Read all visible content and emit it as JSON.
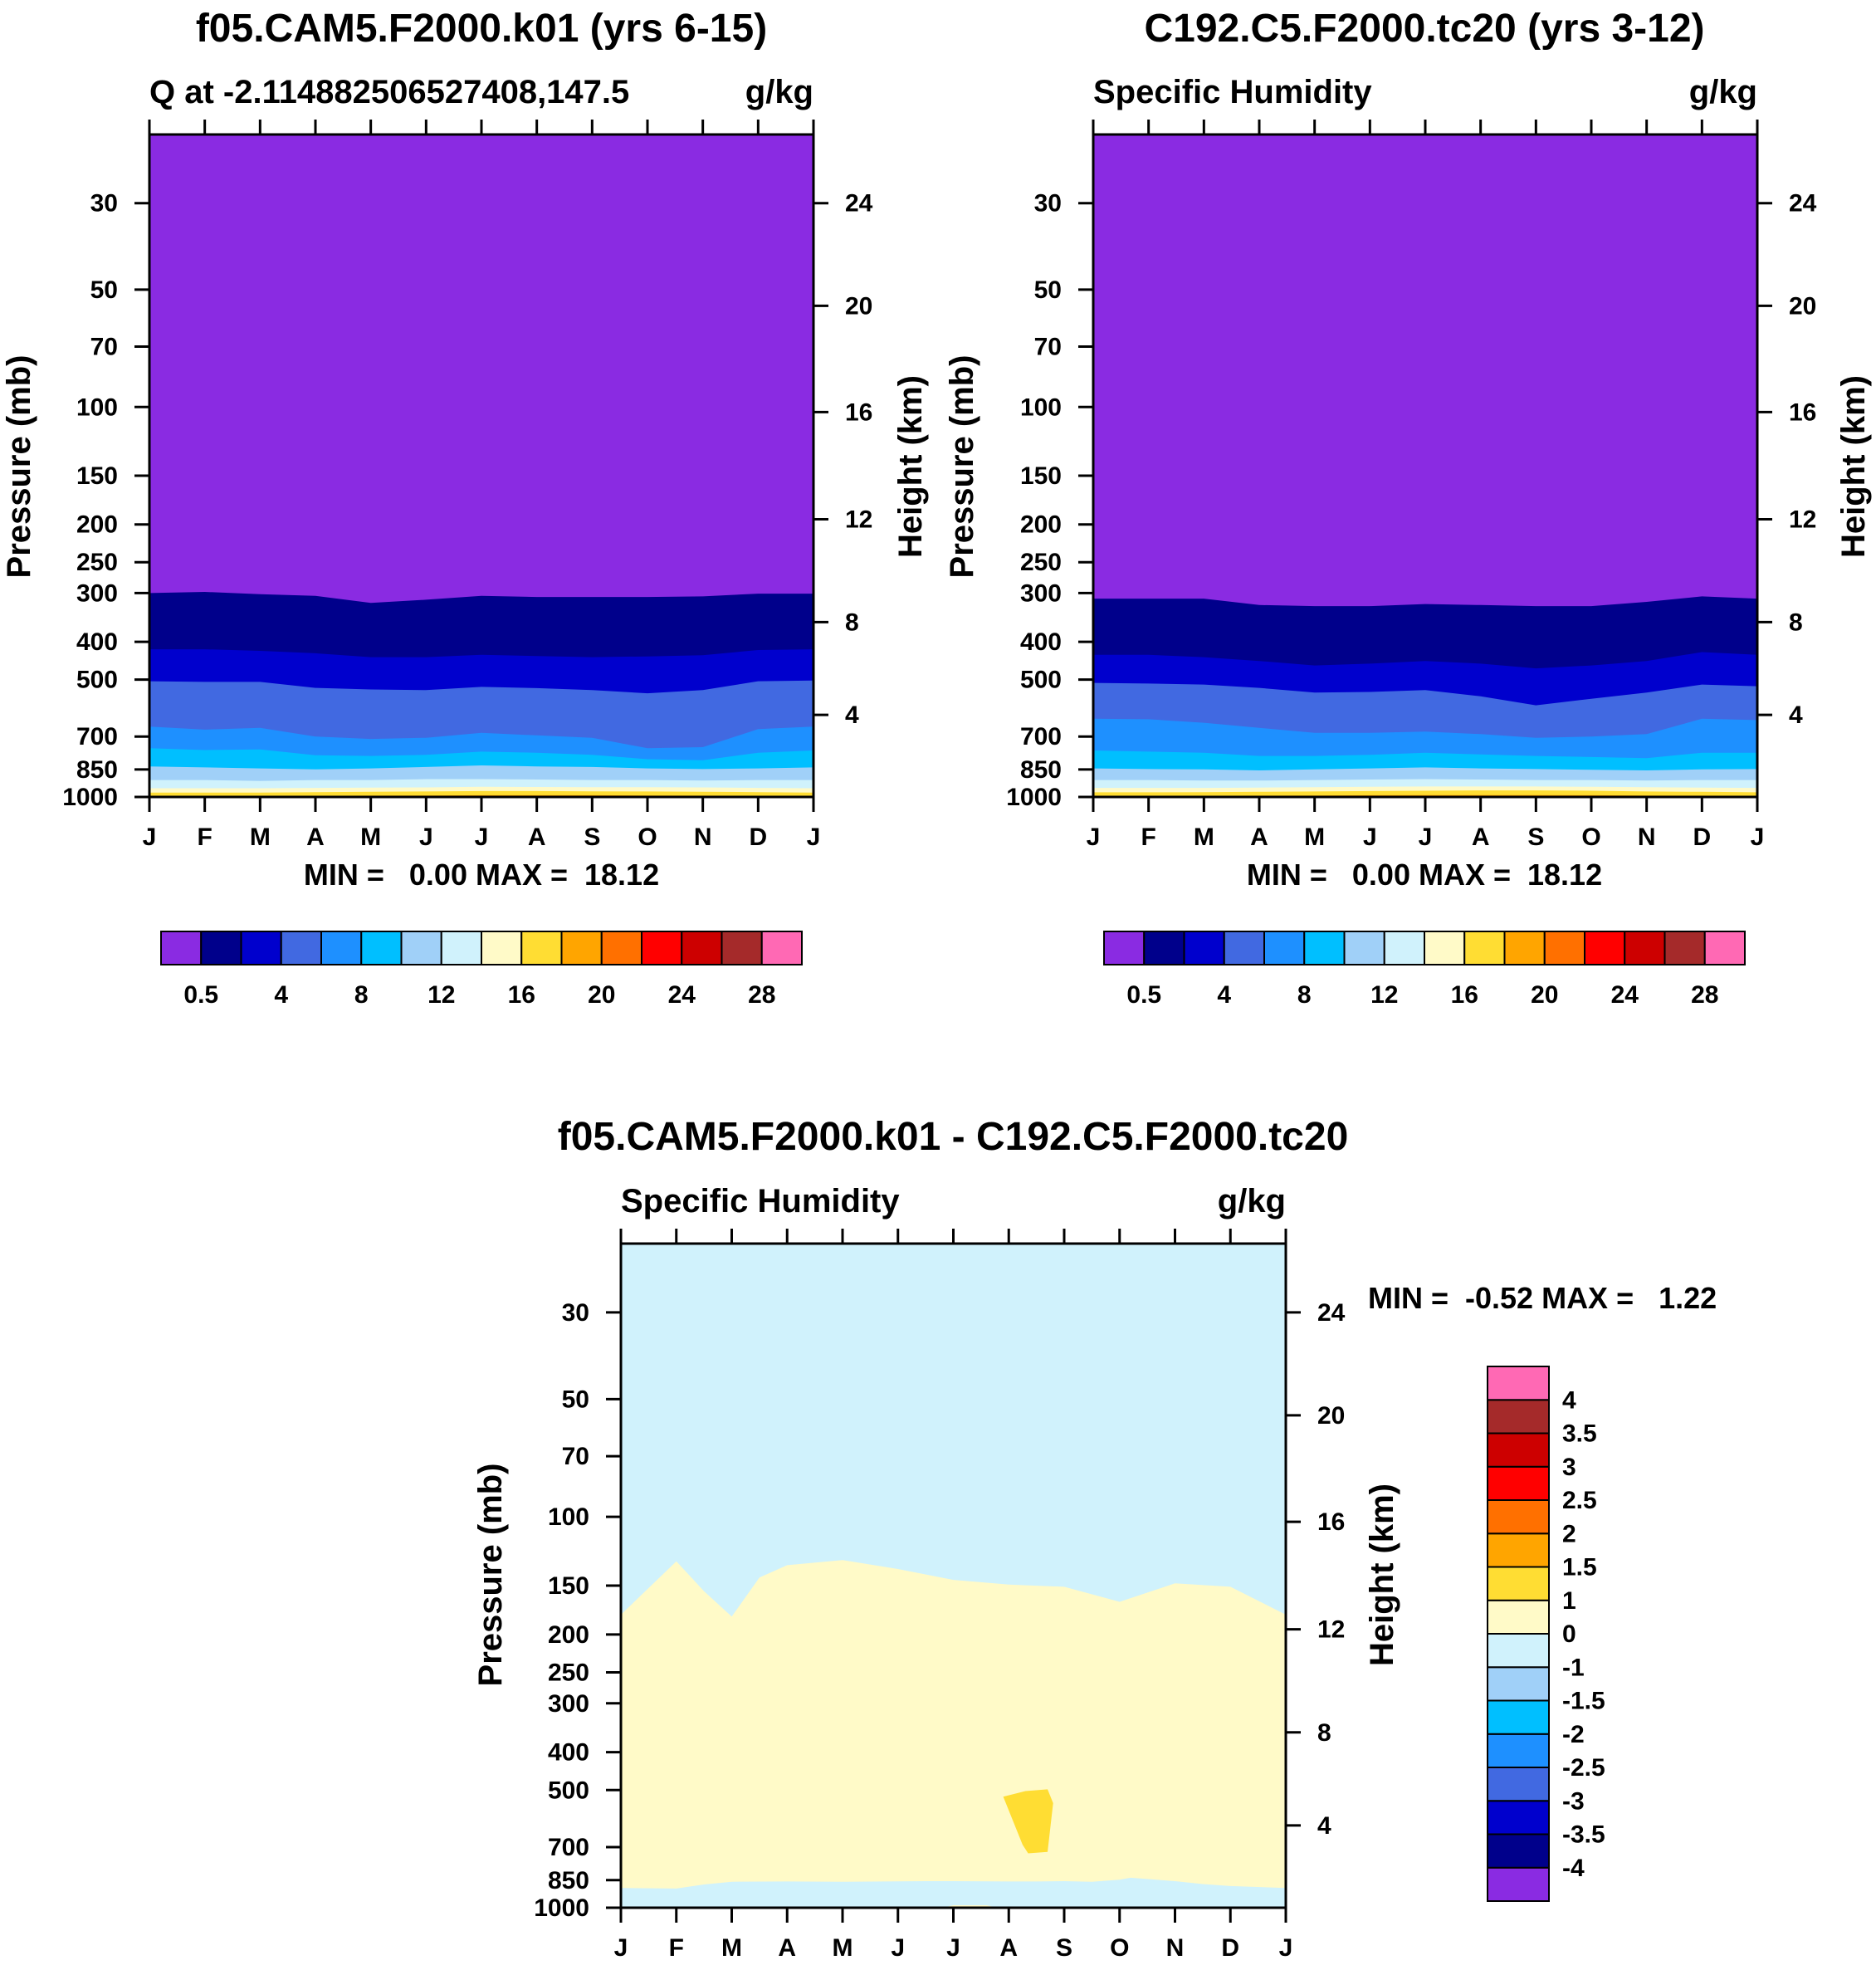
{
  "figure": {
    "panels": [
      {
        "title": "f05.CAM5.F2000.k01 (yrs 6-15)",
        "left_label": "Q at -2.114882506527408,147.5",
        "right_label": "g/kg",
        "ylabel_left": "Pressure (mb)",
        "ylabel_right": "Height (km)",
        "stats": "MIN =   0.00 MAX =  18.12"
      },
      {
        "title": "C192.C5.F2000.tc20 (yrs 3-12)",
        "left_label": "Specific Humidity",
        "right_label": "g/kg",
        "ylabel_left": "Pressure (mb)",
        "ylabel_right": "Height (km)",
        "stats": "MIN =   0.00 MAX =  18.12"
      },
      {
        "title": "f05.CAM5.F2000.k01 - C192.C5.F2000.tc20",
        "left_label": "Specific Humidity",
        "right_label": "g/kg",
        "ylabel_left": "Pressure (mb)",
        "ylabel_right": "Height (km)",
        "stats": "MIN =  -0.52 MAX =   1.22"
      }
    ]
  },
  "chart_data": [
    {
      "type": "heatmap",
      "title": "f05.CAM5.F2000.k01 (yrs 6-15)",
      "x_tick_labels": [
        "J",
        "F",
        "M",
        "A",
        "M",
        "J",
        "J",
        "A",
        "S",
        "O",
        "N",
        "D",
        "J"
      ],
      "y_scale": "log",
      "y_ticks_left": [
        30,
        50,
        70,
        100,
        150,
        200,
        250,
        300,
        400,
        500,
        700,
        850,
        1000
      ],
      "y_ticks_right": [
        4,
        8,
        12,
        16,
        20,
        24
      ],
      "ylim": [
        20,
        1000
      ],
      "contour_levels": [
        0.5,
        2,
        4,
        6,
        8,
        10,
        12,
        14,
        16,
        18,
        20,
        22,
        24,
        26,
        28
      ],
      "colorbar_tick_labels": [
        "0.5",
        "4",
        "8",
        "12",
        "16",
        "20",
        "24",
        "28"
      ],
      "colors": [
        "#8a2be2",
        "#00008b",
        "#0000cd",
        "#4169e1",
        "#1e90ff",
        "#00bfff",
        "#a0d0f8",
        "#d0f2fc",
        "#fffac8",
        "#ffdd33",
        "#ffa500",
        "#ff7000",
        "#ff0000",
        "#cd0000",
        "#a52a2a",
        "#ff69b4"
      ],
      "band_boundaries_mb": [
        {
          "level": 0.5,
          "p": [
            300,
            298,
            302,
            305,
            318,
            312,
            305,
            307,
            307,
            307,
            306,
            301,
            301
          ]
        },
        {
          "level": 2,
          "p": [
            418,
            418,
            422,
            428,
            438,
            438,
            432,
            435,
            438,
            436,
            433,
            420,
            418
          ]
        },
        {
          "level": 4,
          "p": [
            505,
            507,
            507,
            525,
            530,
            532,
            522,
            526,
            532,
            542,
            532,
            505,
            503
          ]
        },
        {
          "level": 6,
          "p": [
            660,
            672,
            665,
            700,
            710,
            705,
            685,
            695,
            705,
            750,
            745,
            670,
            660
          ]
        },
        {
          "level": 8,
          "p": [
            750,
            758,
            755,
            782,
            785,
            780,
            765,
            770,
            780,
            800,
            805,
            770,
            760
          ]
        },
        {
          "level": 10,
          "p": [
            835,
            840,
            845,
            850,
            845,
            838,
            830,
            835,
            838,
            845,
            848,
            845,
            840
          ]
        },
        {
          "level": 12,
          "p": [
            905,
            905,
            910,
            905,
            905,
            900,
            900,
            902,
            905,
            905,
            908,
            905,
            905
          ]
        },
        {
          "level": 14,
          "p": [
            950,
            950,
            950,
            948,
            946,
            945,
            942,
            943,
            944,
            944,
            945,
            948,
            950
          ]
        },
        {
          "level": 16,
          "p": [
            975,
            975,
            975,
            972,
            970,
            968,
            966,
            966,
            967,
            968,
            970,
            972,
            975
          ]
        },
        {
          "level": 18,
          "p": [
            994,
            994,
            994,
            993,
            992,
            991,
            990,
            990,
            990,
            991,
            992,
            993,
            994
          ]
        }
      ]
    },
    {
      "type": "heatmap",
      "title": "C192.C5.F2000.tc20 (yrs 3-12)",
      "x_tick_labels": [
        "J",
        "F",
        "M",
        "A",
        "M",
        "J",
        "J",
        "A",
        "S",
        "O",
        "N",
        "D",
        "J"
      ],
      "y_scale": "log",
      "y_ticks_left": [
        30,
        50,
        70,
        100,
        150,
        200,
        250,
        300,
        400,
        500,
        700,
        850,
        1000
      ],
      "y_ticks_right": [
        4,
        8,
        12,
        16,
        20,
        24
      ],
      "ylim": [
        20,
        1000
      ],
      "contour_levels": [
        0.5,
        2,
        4,
        6,
        8,
        10,
        12,
        14,
        16,
        18,
        20,
        22,
        24,
        26,
        28
      ],
      "colorbar_tick_labels": [
        "0.5",
        "4",
        "8",
        "12",
        "16",
        "20",
        "24",
        "28"
      ],
      "colors": [
        "#8a2be2",
        "#00008b",
        "#0000cd",
        "#4169e1",
        "#1e90ff",
        "#00bfff",
        "#a0d0f8",
        "#d0f2fc",
        "#fffac8",
        "#ffdd33",
        "#ffa500",
        "#ff7000",
        "#ff0000",
        "#cd0000",
        "#a52a2a",
        "#ff69b4"
      ],
      "band_boundaries_mb": [
        {
          "level": 0.5,
          "p": [
            310,
            310,
            310,
            322,
            324,
            324,
            320,
            322,
            324,
            324,
            316,
            306,
            310
          ]
        },
        {
          "level": 2,
          "p": [
            432,
            432,
            438,
            448,
            460,
            455,
            448,
            455,
            468,
            460,
            448,
            425,
            432
          ]
        },
        {
          "level": 4,
          "p": [
            510,
            512,
            515,
            525,
            540,
            538,
            532,
            552,
            582,
            560,
            540,
            515,
            520
          ]
        },
        {
          "level": 6,
          "p": [
            630,
            632,
            645,
            665,
            685,
            685,
            680,
            690,
            705,
            700,
            690,
            630,
            635
          ]
        },
        {
          "level": 8,
          "p": [
            760,
            765,
            770,
            785,
            785,
            780,
            770,
            778,
            785,
            790,
            795,
            770,
            770
          ]
        },
        {
          "level": 10,
          "p": [
            845,
            848,
            850,
            855,
            850,
            845,
            840,
            845,
            848,
            852,
            855,
            850,
            848
          ]
        },
        {
          "level": 12,
          "p": [
            905,
            905,
            908,
            908,
            905,
            902,
            900,
            902,
            905,
            905,
            908,
            905,
            905
          ]
        },
        {
          "level": 14,
          "p": [
            948,
            948,
            948,
            946,
            944,
            942,
            940,
            940,
            940,
            942,
            944,
            946,
            948
          ]
        },
        {
          "level": 16,
          "p": [
            973,
            973,
            972,
            970,
            968,
            966,
            964,
            962,
            962,
            964,
            968,
            970,
            973
          ]
        },
        {
          "level": 18,
          "p": [
            993,
            993,
            993,
            992,
            991,
            990,
            989,
            989,
            989,
            990,
            991,
            992,
            993
          ]
        }
      ]
    },
    {
      "type": "heatmap",
      "title": "f05.CAM5.F2000.k01 - C192.C5.F2000.tc20",
      "x_tick_labels": [
        "J",
        "F",
        "M",
        "A",
        "M",
        "J",
        "J",
        "A",
        "S",
        "O",
        "N",
        "D",
        "J"
      ],
      "y_scale": "log",
      "y_ticks_left": [
        30,
        50,
        70,
        100,
        150,
        200,
        250,
        300,
        400,
        500,
        700,
        850,
        1000
      ],
      "y_ticks_right": [
        4,
        8,
        12,
        16,
        20,
        24
      ],
      "ylim": [
        20,
        1000
      ],
      "contour_levels": [
        -4,
        -3.5,
        -3,
        -2.5,
        -2,
        -1.5,
        -1,
        0,
        1,
        1.5,
        2,
        2.5,
        3,
        3.5,
        4
      ],
      "colorbar_tick_labels": [
        "-4",
        "-3.5",
        "-3",
        "-2.5",
        "-2",
        "-1.5",
        "-1",
        "0",
        "1",
        "1.5",
        "2",
        "2.5",
        "3",
        "3.5",
        "4"
      ],
      "colors": [
        "#8a2be2",
        "#00008b",
        "#0000cd",
        "#4169e1",
        "#1e90ff",
        "#00bfff",
        "#a0d0f8",
        "#d0f2fc",
        "#fffac8",
        "#ffdd33",
        "#ffa500",
        "#ff7000",
        "#ff0000",
        "#cd0000",
        "#a52a2a",
        "#ff69b4"
      ],
      "positive_region_upper_mb": [
        178,
        130,
        155,
        180,
        143,
        133,
        129,
        136,
        145,
        149,
        151,
        165,
        148,
        151,
        178
      ],
      "positive_region_x_months": [
        0,
        1,
        1.5,
        2,
        2.5,
        3,
        4,
        5,
        6,
        7,
        8,
        9,
        10,
        11,
        12
      ],
      "positive_region_lower_mb": [
        890,
        893,
        872,
        858,
        857,
        858,
        856,
        855,
        855,
        857,
        857,
        855,
        858,
        848,
        838,
        855,
        870,
        880,
        890
      ],
      "positive_region_lower_x_months": [
        0,
        1,
        1.5,
        2,
        3,
        4,
        5,
        5.5,
        6,
        7,
        7.5,
        8,
        8.5,
        9,
        9.2,
        10,
        10.5,
        11,
        12
      ],
      "patch_1_to_1_5": {
        "x_months": [
          6.9,
          7.3,
          7.7,
          7.8,
          7.7,
          7.35,
          7.25,
          6.9
        ],
        "p_mb": [
          520,
          503,
          498,
          540,
          720,
          726,
          690,
          520
        ]
      }
    }
  ]
}
